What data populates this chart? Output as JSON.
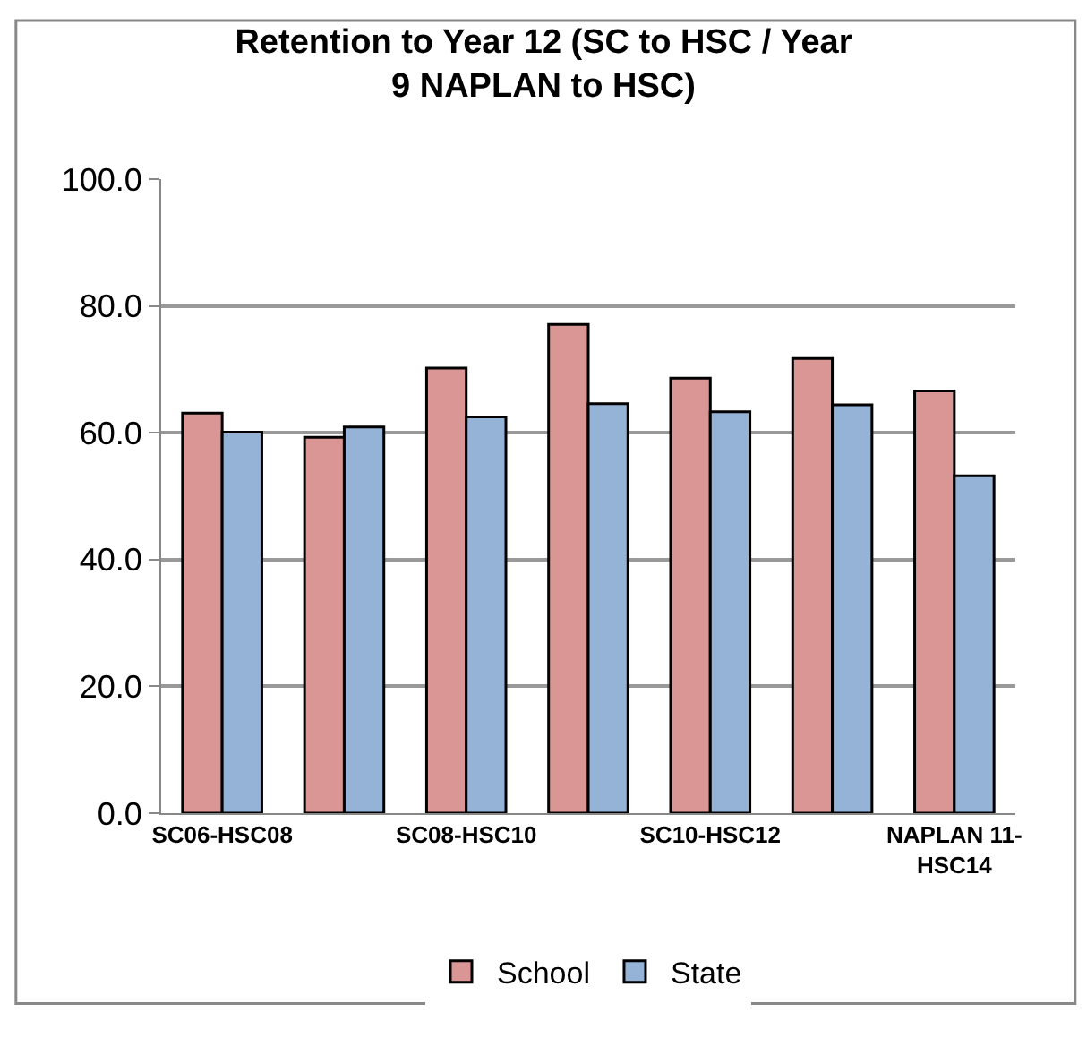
{
  "chart_data": {
    "type": "bar",
    "title": "Retention to Year 12 (SC to HSC / Year 9 NAPLAN to HSC)",
    "categories": [
      "SC06-HSC08",
      null,
      "SC08-HSC10",
      null,
      "SC10-HSC12",
      null,
      "NAPLAN 11-HSC14"
    ],
    "series": [
      {
        "name": "School",
        "color": "#d99694",
        "values": [
          63.1,
          59.3,
          70.2,
          77.1,
          68.6,
          71.7,
          66.6
        ]
      },
      {
        "name": "State",
        "color": "#95b3d7",
        "values": [
          60.1,
          60.9,
          62.5,
          64.6,
          63.3,
          64.4,
          53.2
        ]
      }
    ],
    "ylim": [
      0,
      100
    ],
    "yticks": [
      {
        "value": 0,
        "label": "0.0"
      },
      {
        "value": 20,
        "label": "20.0"
      },
      {
        "value": 40,
        "label": "40.0"
      },
      {
        "value": 60,
        "label": "60.0"
      },
      {
        "value": 80,
        "label": "80.0"
      },
      {
        "value": 100,
        "label": "100.0"
      }
    ],
    "grid": "y",
    "legend": "bottom"
  }
}
